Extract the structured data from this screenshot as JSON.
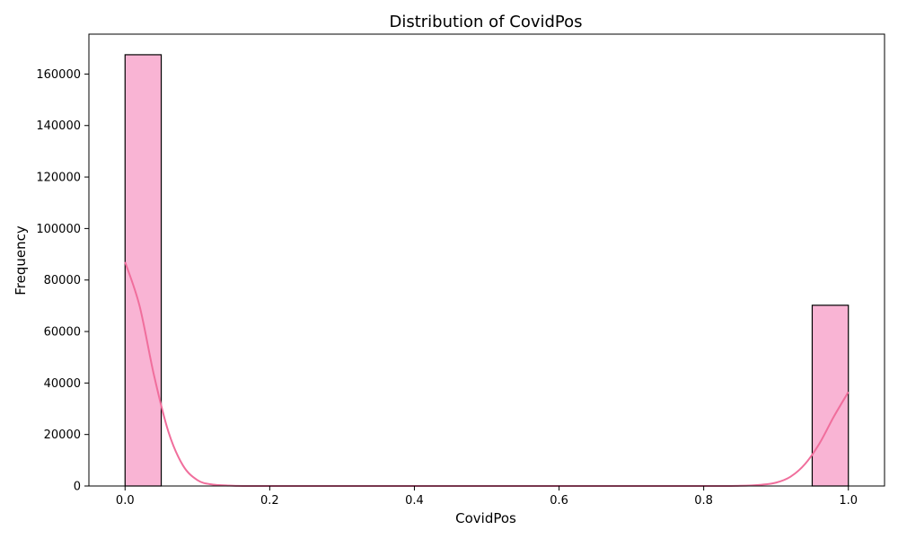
{
  "chart_data": {
    "type": "bar",
    "title": "Distribution of CovidPos",
    "xlabel": "CovidPos",
    "ylabel": "Frequency",
    "xlim": [
      -0.05,
      1.05
    ],
    "ylim": [
      0,
      175500
    ],
    "x_ticks": [
      0.0,
      0.2,
      0.4,
      0.6,
      0.8,
      1.0
    ],
    "x_tick_labels": [
      "0.0",
      "0.2",
      "0.4",
      "0.6",
      "0.8",
      "1.0"
    ],
    "y_ticks": [
      0,
      20000,
      40000,
      60000,
      80000,
      100000,
      120000,
      140000,
      160000
    ],
    "y_tick_labels": [
      "0",
      "20000",
      "40000",
      "60000",
      "80000",
      "100000",
      "120000",
      "140000",
      "160000"
    ],
    "bins": [
      {
        "x0": 0.0,
        "x1": 0.05,
        "value": 167500
      },
      {
        "x0": 0.95,
        "x1": 1.0,
        "value": 70200
      }
    ],
    "kde": {
      "x": [
        0.0,
        0.02,
        0.04,
        0.06,
        0.08,
        0.1,
        0.12,
        0.15,
        0.2,
        0.5,
        0.8,
        0.85,
        0.88,
        0.9,
        0.92,
        0.94,
        0.96,
        0.98,
        1.0
      ],
      "y": [
        87000,
        70000,
        43000,
        21000,
        8000,
        2300,
        600,
        100,
        0,
        0,
        0,
        100,
        500,
        1300,
        3600,
        8500,
        16500,
        27000,
        36500
      ]
    },
    "grid": false,
    "colors": {
      "bar_fill": "#f9b4d4",
      "bar_edge": "#000000",
      "kde_line": "#f06e9c"
    }
  }
}
